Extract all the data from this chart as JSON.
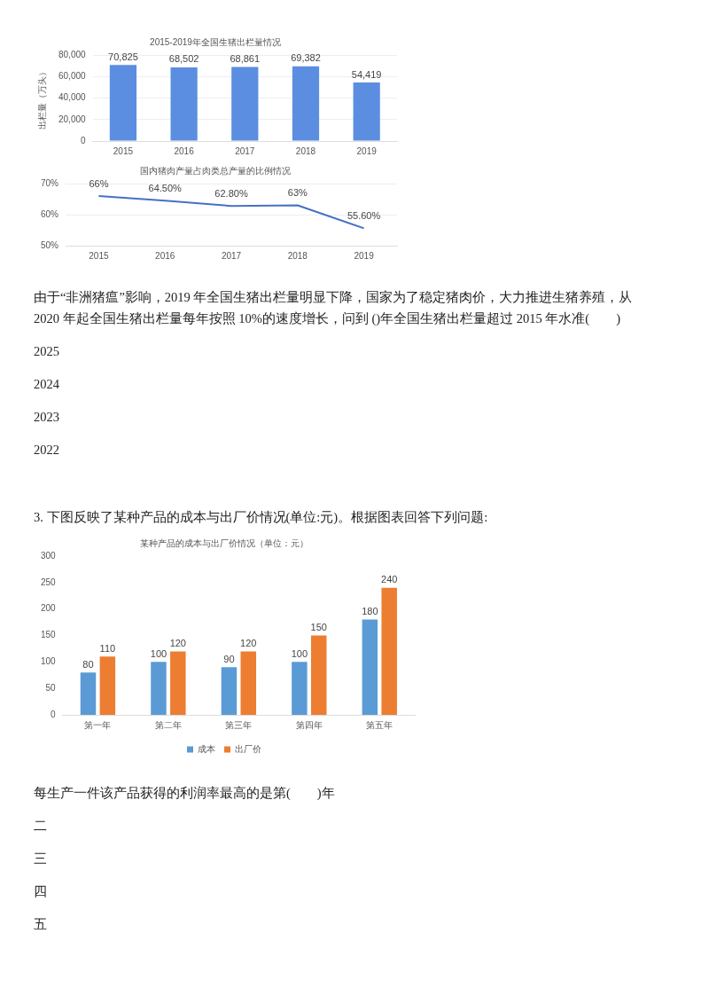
{
  "chart_data": [
    {
      "type": "bar",
      "title": "2015-2019年全国生猪出栏量情况",
      "ylabel": "出栏量（万头）",
      "categories": [
        "2015",
        "2016",
        "2017",
        "2018",
        "2019"
      ],
      "series": [
        {
          "color": "#5b8ee0",
          "values": [
            70825,
            68502,
            68861,
            69382,
            54419
          ],
          "value_labels": [
            "70,825",
            "68,502",
            "68,861",
            "69,382",
            "54,419"
          ]
        }
      ],
      "ylim": [
        0,
        80000
      ],
      "yticks": [
        {
          "value": 0,
          "label": "0"
        },
        {
          "value": 20000,
          "label": "20,000"
        },
        {
          "value": 40000,
          "label": "40,000"
        },
        {
          "value": 60000,
          "label": "60,000"
        },
        {
          "value": 80000,
          "label": "80,000"
        }
      ],
      "grid": "y",
      "legend": false
    },
    {
      "type": "line",
      "title": "国内猪肉产量占肉类总产量的比例情况",
      "categories": [
        "2015",
        "2016",
        "2017",
        "2018",
        "2019"
      ],
      "series": [
        {
          "color": "#4472c4",
          "values": [
            66,
            64.5,
            62.8,
            63,
            55.6
          ],
          "value_labels": [
            "66%",
            "64.50%",
            "62.80%",
            "63%",
            "55.60%"
          ]
        }
      ],
      "ylim": [
        50,
        70
      ],
      "yticks": [
        {
          "value": 50,
          "label": "50%"
        },
        {
          "value": 60,
          "label": "60%"
        },
        {
          "value": 70,
          "label": "70%"
        }
      ],
      "grid": "y",
      "legend": false,
      "marker": "none",
      "annotations": [
        "由于“非洲猪瘟”影响，2019 年全国生猪出栏量明显下降，国家为了稳定猪肉价，大力推进生猪养殖，从 2020 年起全国生猪出栏量每年按照 10%的速度增长，问到 ()年全国生猪出栏量超过 2015 年水准(　　)",
        "2025",
        "2024",
        "2023",
        "2022",
        "3. 下图反映了某种产品的成本与出厂价情况(单位:元)。根据图表回答下列问题:"
      ]
    },
    {
      "type": "bar",
      "title": "某种产品的成本与出厂价情况（单位：元）",
      "categories": [
        "第一年",
        "第二年",
        "第三年",
        "第四年",
        "第五年"
      ],
      "series": [
        {
          "name": "成本",
          "color": "#5b9bd5",
          "values": [
            80,
            100,
            90,
            100,
            180
          ]
        },
        {
          "name": "出厂价",
          "color": "#ed7d31",
          "values": [
            110,
            120,
            120,
            150,
            240
          ]
        }
      ],
      "ylim": [
        0,
        300
      ],
      "yticks": [
        0,
        50,
        100,
        150,
        200,
        250,
        300
      ],
      "grid": false,
      "legend": "bottom",
      "data_labels": true,
      "annotations": [
        "每生产一件该产品获得的利润率最高的是第(　　)年",
        "二",
        "三",
        "四",
        "五"
      ]
    }
  ]
}
